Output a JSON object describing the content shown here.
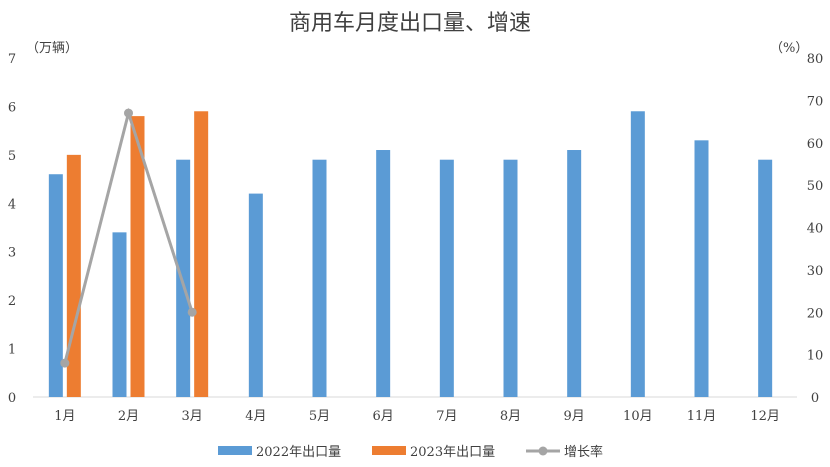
{
  "chart_data": {
    "type": "bar",
    "title": "商用车月度出口量、增速",
    "y_left_unit": "（万辆）",
    "y_right_unit": "（%）",
    "ylim_left": [
      0,
      7
    ],
    "ylim_right": [
      0,
      80
    ],
    "y_left_ticks": [
      "0",
      "1",
      "2",
      "3",
      "4",
      "5",
      "6",
      "7"
    ],
    "y_right_ticks": [
      "0",
      "10",
      "20",
      "30",
      "40",
      "50",
      "60",
      "70",
      "80"
    ],
    "categories": [
      "1月",
      "2月",
      "3月",
      "4月",
      "5月",
      "6月",
      "7月",
      "8月",
      "9月",
      "10月",
      "11月",
      "12月"
    ],
    "series": [
      {
        "name": "2022年出口量",
        "type": "bar",
        "axis": "left",
        "color": "#5B9BD5",
        "values": [
          4.6,
          3.4,
          4.9,
          4.2,
          4.9,
          5.1,
          4.9,
          4.9,
          5.1,
          5.9,
          5.3,
          4.9
        ]
      },
      {
        "name": "2023年出口量",
        "type": "bar",
        "axis": "left",
        "color": "#ED7D31",
        "values": [
          5.0,
          5.8,
          5.9,
          null,
          null,
          null,
          null,
          null,
          null,
          null,
          null,
          null
        ]
      },
      {
        "name": "增长率",
        "type": "line",
        "axis": "right",
        "color": "#A5A5A5",
        "values": [
          8,
          67,
          20,
          null,
          null,
          null,
          null,
          null,
          null,
          null,
          null,
          null
        ]
      }
    ],
    "grid": false,
    "legend_position": "bottom"
  }
}
